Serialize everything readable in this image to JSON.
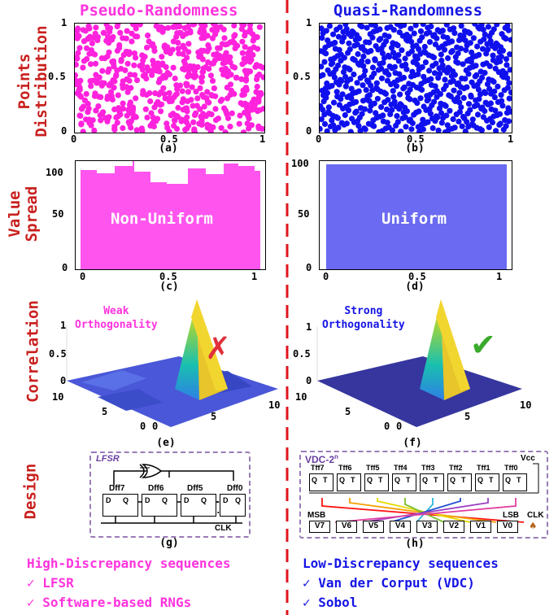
{
  "headers": {
    "left": "Pseudo-Randomness",
    "right": "Quasi-Randomness",
    "left_color": "#ff33dd",
    "right_color": "#1515e6"
  },
  "row_labels": {
    "points": [
      "Points",
      "Distribution"
    ],
    "spread": [
      "Value",
      "Spread"
    ],
    "correlation": "Correlation",
    "design": "Design",
    "color": "#c8201e"
  },
  "panels": {
    "a": "(a)",
    "b": "(b)",
    "c": "(c)",
    "d": "(d)",
    "e": "(e)",
    "f": "(f)",
    "g": "(g)",
    "h": "(h)"
  },
  "scatter": {
    "ticks_y": [
      "1",
      "0.5",
      "0"
    ],
    "ticks_x": [
      "0",
      "0.5",
      "1"
    ]
  },
  "histogram": {
    "left_text": "Non-Uniform",
    "right_text": "Uniform",
    "ticks_y": [
      "100",
      "50",
      "0"
    ],
    "ticks_x": [
      "0",
      "0.5",
      "1"
    ]
  },
  "correlation": {
    "left_text": [
      "Weak",
      "Orthogonality"
    ],
    "right_text": [
      "Strong",
      "Orthogonality"
    ],
    "z_ticks": [
      "1",
      "0.5",
      "0"
    ],
    "left_axis": [
      "10",
      "5",
      "0"
    ],
    "right_axis": [
      "0",
      "5",
      "10"
    ],
    "cross_icon": "✗",
    "check_icon": "✔",
    "cross_color": "#e0303a",
    "check_color": "#3aaa2c"
  },
  "lfsr": {
    "title": "LFSR",
    "flipflops": [
      "Dff7",
      "Dff6",
      "Dff5",
      "Dff0"
    ],
    "pins": [
      "D",
      "Q"
    ],
    "dots": "· · · ·",
    "clk": "CLK"
  },
  "vdc": {
    "title": "VDC-2",
    "title_sup": "n",
    "vcc": "Vcc",
    "flipflops": [
      "Tff7",
      "Tff6",
      "Tff5",
      "Tff4",
      "Tff3",
      "Tff2",
      "Tff1",
      "Tff0"
    ],
    "pins": [
      "Q",
      "T"
    ],
    "msb": "MSB",
    "lsb": "LSB",
    "outputs": [
      "V7",
      "V6",
      "V5",
      "V4",
      "V3",
      "V2",
      "V1",
      "V0"
    ],
    "clk": "CLK"
  },
  "bottom": {
    "left_title": "High-Discrepancy sequences",
    "left_items": [
      "LFSR",
      "Software-based RNGs"
    ],
    "right_title": "Low-Discrepancy sequences",
    "right_items": [
      "Van der Corput (VDC)",
      "Sobol"
    ],
    "check": "✓"
  }
}
